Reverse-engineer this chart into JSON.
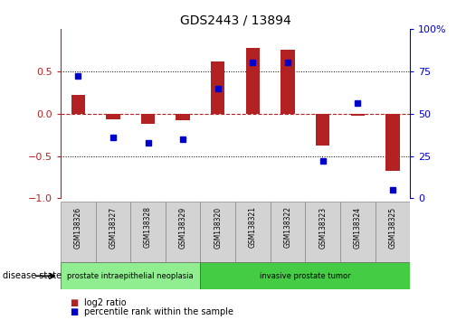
{
  "title": "GDS2443 / 13894",
  "samples": [
    "GSM138326",
    "GSM138327",
    "GSM138328",
    "GSM138329",
    "GSM138320",
    "GSM138321",
    "GSM138322",
    "GSM138323",
    "GSM138324",
    "GSM138325"
  ],
  "log2_ratio": [
    0.22,
    -0.07,
    -0.12,
    -0.08,
    0.62,
    0.77,
    0.75,
    -0.38,
    -0.02,
    -0.68
  ],
  "percentile_rank": [
    72,
    36,
    33,
    35,
    65,
    80,
    80,
    22,
    56,
    5
  ],
  "disease_groups": [
    {
      "label": "prostate intraepithelial neoplasia",
      "start": 0,
      "end": 3,
      "color": "#90ee90"
    },
    {
      "label": "invasive prostate tumor",
      "start": 4,
      "end": 9,
      "color": "#44cc44"
    }
  ],
  "bar_color_red": "#b22222",
  "bar_color_blue": "#0000cd",
  "ylim_left": [
    -1,
    1
  ],
  "ylim_right": [
    0,
    100
  ],
  "yticks_left": [
    -1,
    -0.5,
    0,
    0.5
  ],
  "yticks_right": [
    0,
    25,
    50,
    75,
    100
  ],
  "background_color": "#ffffff",
  "legend_items": [
    "log2 ratio",
    "percentile rank within the sample"
  ],
  "bar_width": 0.4,
  "disease_state_label": "disease state"
}
